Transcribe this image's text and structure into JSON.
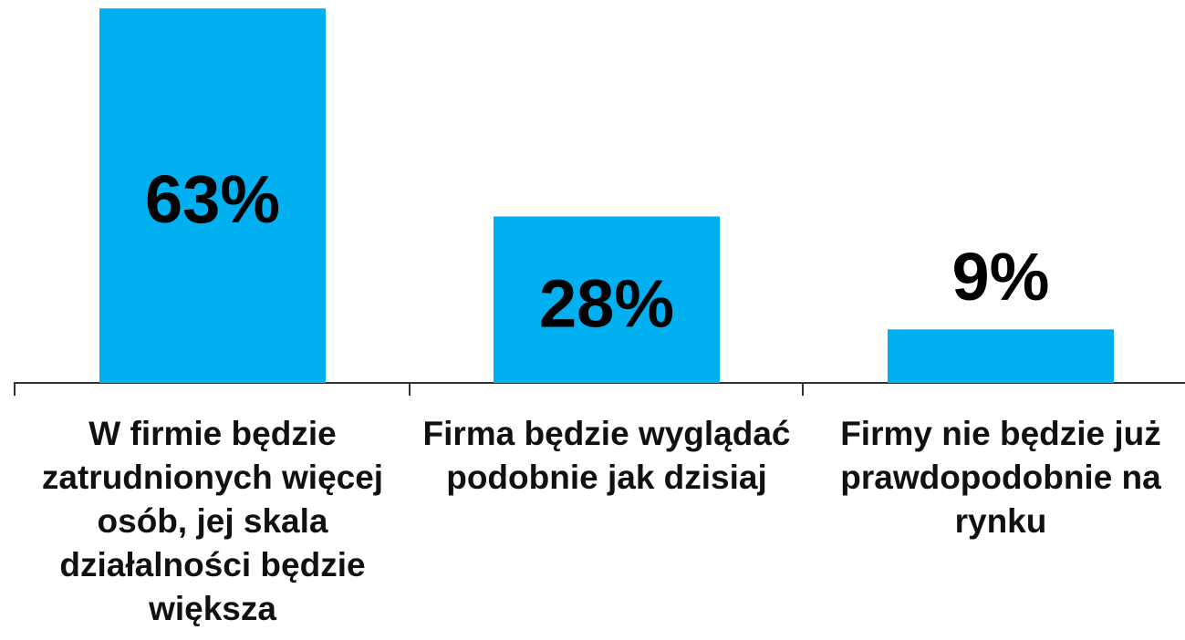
{
  "chart_data": {
    "type": "bar",
    "categories": [
      "W firmie będzie zatrudnionych więcej osób, jej skala działalności będzie większa",
      "Firma będzie wyglądać podobnie jak dzisiaj",
      "Firmy nie będzie już prawdopodobnie na rynku"
    ],
    "values": [
      63,
      28,
      9
    ],
    "value_labels": [
      "63%",
      "28%",
      "9%"
    ],
    "color": "#00b0f0"
  }
}
